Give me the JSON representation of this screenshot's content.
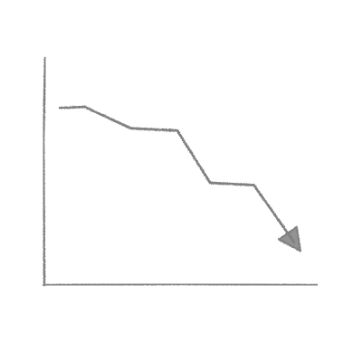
{
  "colors": {
    "stroke": "#808080",
    "background": "#ffffff"
  },
  "chart_data": {
    "type": "line",
    "title": "",
    "xlabel": "",
    "ylabel": "",
    "grid": false,
    "legend": "none",
    "style": "hand-drawn pencil sketch",
    "trend": "decreasing",
    "end_marker": "arrowhead",
    "xlim": [
      0,
      10
    ],
    "ylim": [
      0,
      10
    ],
    "series": [
      {
        "x": [
          0.6,
          1.5,
          3.2,
          4.9,
          6.1,
          7.7,
          9.4
        ],
        "y": [
          7.8,
          7.85,
          6.9,
          6.8,
          4.5,
          4.4,
          1.5
        ]
      }
    ]
  }
}
